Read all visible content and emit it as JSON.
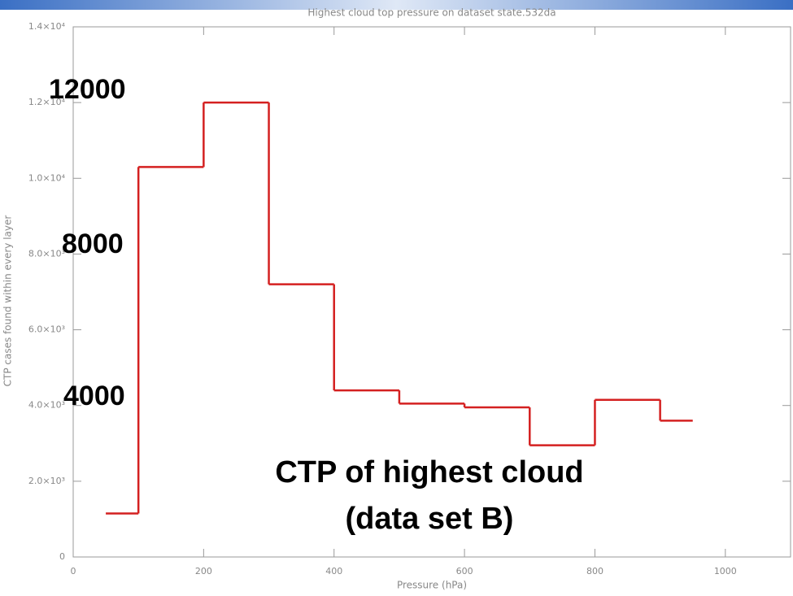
{
  "chart_data": {
    "type": "histogram",
    "title": "Highest cloud top pressure on dataset state.532da",
    "x_label": "Pressure (hPa)",
    "y_label": "CTP cases found within every layer",
    "bins": [
      50,
      100,
      200,
      300,
      400,
      500,
      600,
      700,
      800,
      900,
      950
    ],
    "values": [
      1150,
      10300,
      12000,
      7200,
      4400,
      4050,
      3950,
      2950,
      4150,
      3600
    ],
    "color": "#d42020",
    "xlim": [
      0,
      1100
    ],
    "xticks": [
      0,
      200,
      400,
      600,
      800,
      1000
    ],
    "ylim": [
      0,
      14000
    ],
    "yticks": [
      0,
      {
        "value": 2000,
        "label": "2.0×10³"
      },
      {
        "value": 4000,
        "label": "4.0×10³"
      },
      {
        "value": 6000,
        "label": "6.0×10³"
      },
      {
        "value": 8000,
        "label": "8.0×10³"
      },
      {
        "value": 10000,
        "label": "1.0×10⁴"
      },
      {
        "value": 12000,
        "label": "1.2×10⁴"
      },
      {
        "value": 14000,
        "label": "1.4×10⁴"
      }
    ],
    "annotations": [
      "12000",
      "8000",
      "4000",
      "CTP of highest cloud",
      "(data set B)"
    ]
  }
}
